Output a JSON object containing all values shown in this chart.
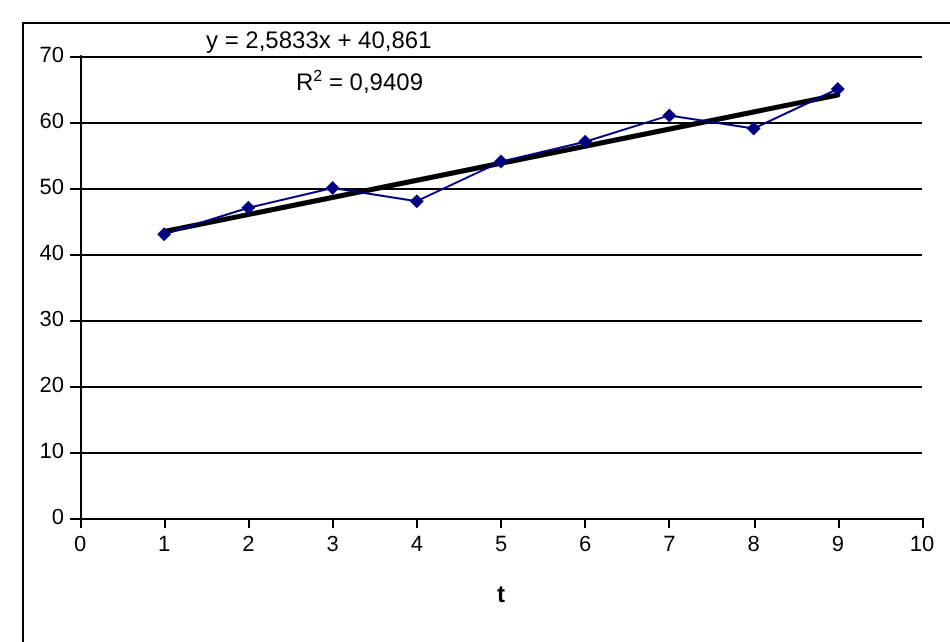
{
  "chart_data": {
    "type": "line",
    "xlabel": "t",
    "annotations": [
      "y = 2,5833x + 40,861",
      "R$^{2}$ = 0,9409"
    ],
    "series": [
      {
        "color": "#000080",
        "x": [
          1,
          2,
          3,
          4,
          5,
          6,
          7,
          8,
          9
        ],
        "values": [
          43,
          47,
          50,
          48,
          54,
          57,
          61,
          59,
          65
        ],
        "marker": "diamond"
      },
      {
        "type": "line",
        "color": "#000000",
        "x": [
          1,
          9
        ],
        "values": [
          43.4,
          64.1
        ],
        "marker": "none"
      }
    ],
    "xlim": [
      0,
      10
    ],
    "xticks": [
      0,
      1,
      2,
      3,
      4,
      5,
      6,
      7,
      8,
      9,
      10
    ],
    "ylim": [
      0,
      70
    ],
    "yticks": [
      0,
      10,
      20,
      30,
      40,
      50,
      60,
      70
    ],
    "grid": "y"
  }
}
